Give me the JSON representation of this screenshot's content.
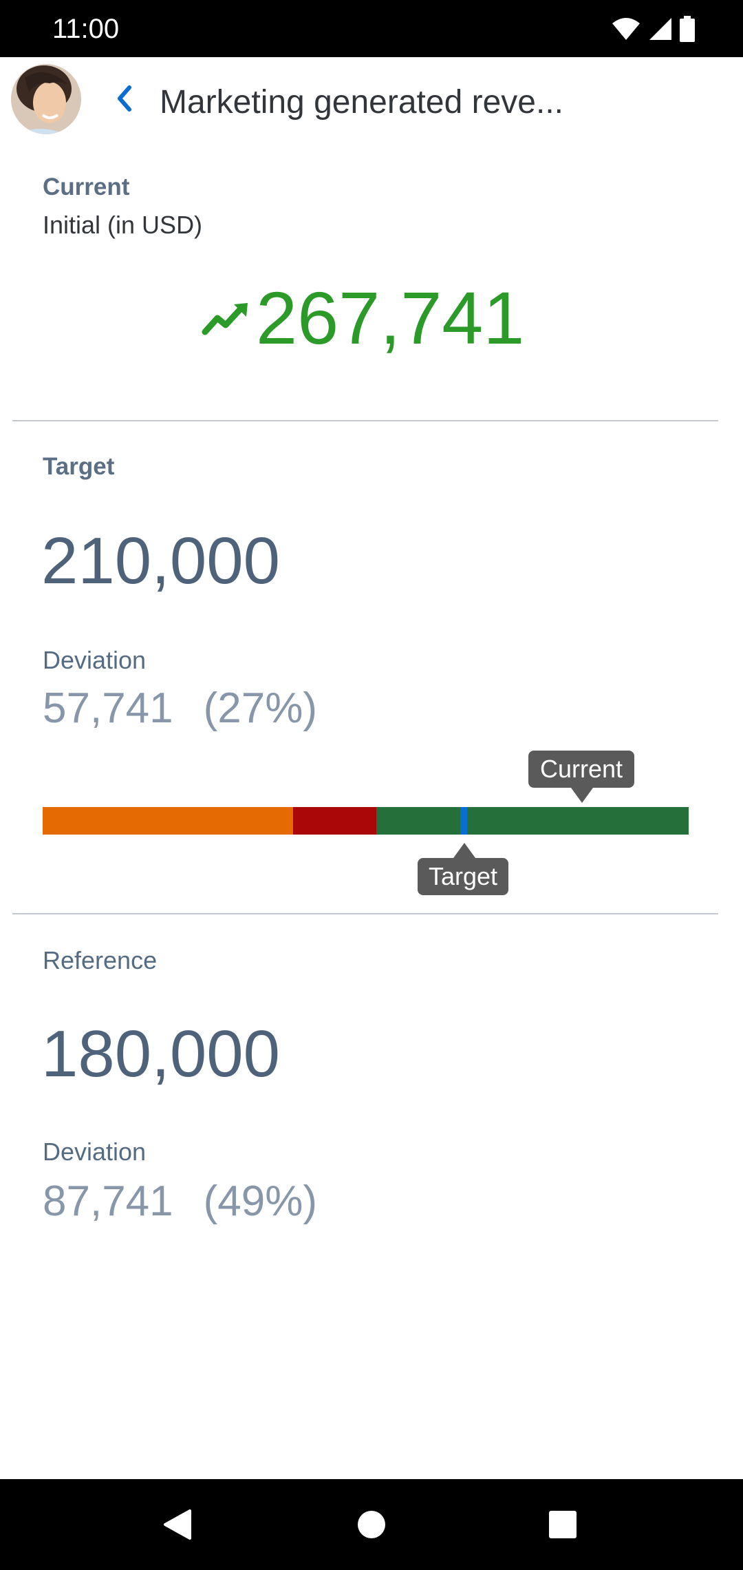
{
  "status_bar": {
    "time": "11:00",
    "icons": [
      "wifi-icon",
      "signal-icon",
      "battery-icon"
    ]
  },
  "header": {
    "title": "Marketing generated reve...",
    "back_icon": "chevron-left-icon",
    "avatar": "user-avatar"
  },
  "current": {
    "label": "Current",
    "subtitle": "Initial (in USD)",
    "value": "267,741",
    "trend_icon": "trending-up-icon"
  },
  "target": {
    "label": "Target",
    "value": "210,000",
    "deviation_label": "Deviation",
    "deviation_value": "57,741",
    "deviation_pct": "(27%)"
  },
  "bullet_chart": {
    "current_tooltip": "Current",
    "target_tooltip": "Target"
  },
  "reference": {
    "label": "Reference",
    "value": "180,000",
    "deviation_label": "Deviation",
    "deviation_value": "87,741",
    "deviation_pct": "(49%)"
  },
  "nav_bar": {
    "back": "triangle-back-icon",
    "home": "circle-home-icon",
    "recents": "square-recents-icon"
  },
  "colors": {
    "positive": "#2b9a28",
    "accent": "#0a6ed1",
    "bar_orange": "#e56a03",
    "bar_red": "#aa0808",
    "bar_green": "#256f3a"
  }
}
